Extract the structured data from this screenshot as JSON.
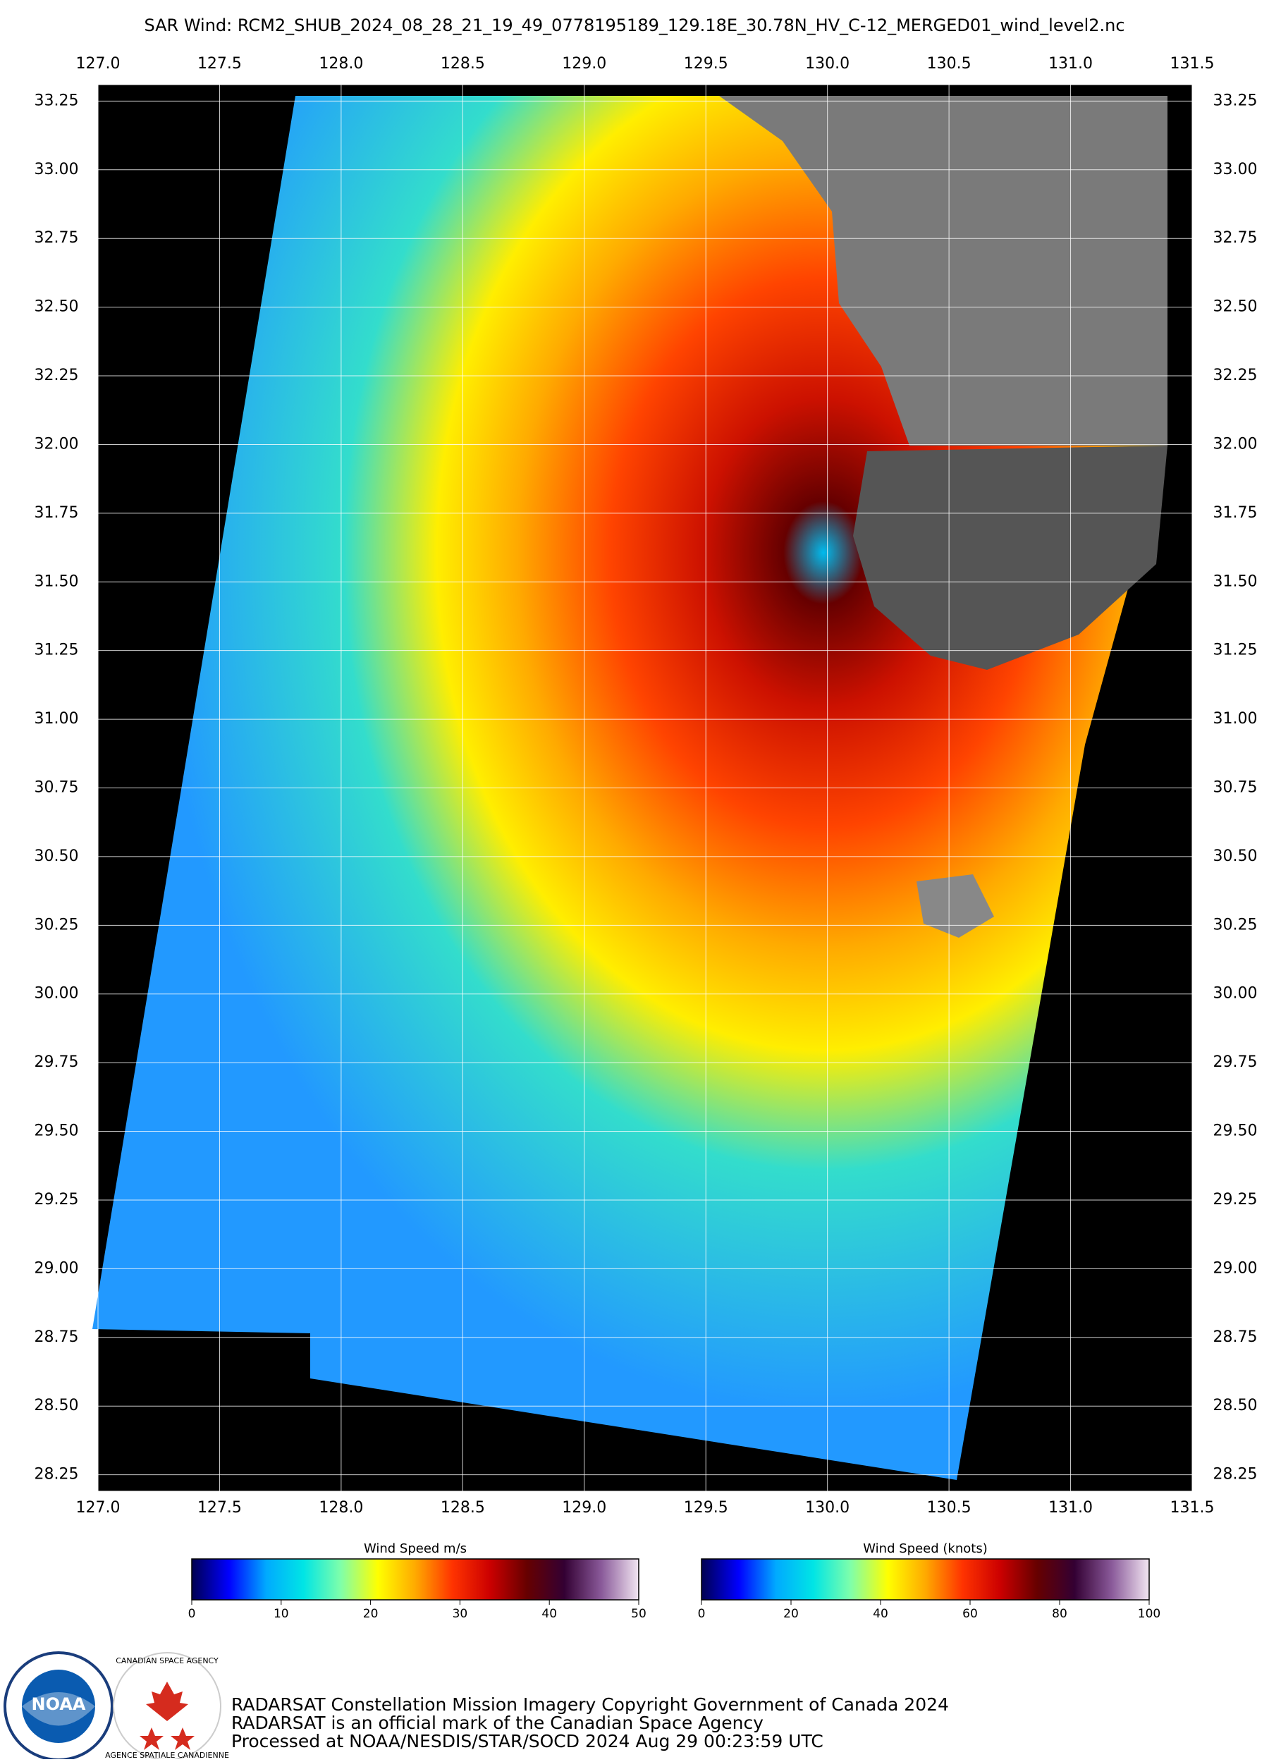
{
  "title": "SAR Wind: RCM2_SHUB_2024_08_28_21_19_49_0778195189_129.18E_30.78N_HV_C-12_MERGED01_wind_level2.nc",
  "map": {
    "xlim": [
      127,
      131.5
    ],
    "ylim": [
      28.19,
      33.31
    ],
    "xticks": [
      {
        "value": 127,
        "label": "127.0"
      },
      {
        "value": 127.5,
        "label": "127.5"
      },
      {
        "value": 128,
        "label": "128.0"
      },
      {
        "value": 128.5,
        "label": "128.5"
      },
      {
        "value": 129,
        "label": "129.0"
      },
      {
        "value": 129.5,
        "label": "129.5"
      },
      {
        "value": 130,
        "label": "130.0"
      },
      {
        "value": 130.5,
        "label": "130.5"
      },
      {
        "value": 131,
        "label": "131.0"
      },
      {
        "value": 131.5,
        "label": "131.5"
      }
    ],
    "yticks": [
      33.25,
      {
        "value": 33,
        "label": "33.00"
      },
      32.75,
      {
        "value": 32.5,
        "label": "32.50"
      },
      32.25,
      {
        "value": 32,
        "label": "32.00"
      },
      31.75,
      {
        "value": 31.5,
        "label": "31.50"
      },
      31.25,
      {
        "value": 31,
        "label": "31.00"
      },
      30.75,
      {
        "value": 30.5,
        "label": "30.50"
      },
      30.25,
      {
        "value": 30,
        "label": "30.00"
      },
      29.75,
      {
        "value": 29.5,
        "label": "29.50"
      },
      29.25,
      {
        "value": 29,
        "label": "29.00"
      },
      28.75,
      {
        "value": 28.5,
        "label": "28.50"
      },
      28.25
    ],
    "grid": true
  },
  "colorbars": [
    {
      "label": "Wind Speed m/s",
      "lim": [
        0,
        50
      ],
      "ticks": [
        0,
        10,
        20,
        30,
        40,
        50
      ]
    },
    {
      "label": "Wind Speed (knots)",
      "lim": [
        0,
        100
      ],
      "ticks": [
        0,
        20,
        40,
        60,
        80,
        100
      ]
    }
  ],
  "colormap": [
    "#000050",
    "#0000ff",
    "#00aaff",
    "#00e5e5",
    "#7fffaa",
    "#ffff00",
    "#ffaa00",
    "#ff3300",
    "#cc0000",
    "#660000",
    "#330033",
    "#8a5a9a",
    "#f2e6f2"
  ],
  "credits": [
    "RADARSAT Constellation Mission Imagery Copyright Government of Canada 2024",
    "RADARSAT is an official mark of the Canadian Space Agency",
    "Processed at NOAA/NESDIS/STAR/SOCD 2024 Aug 29 00:23:59 UTC"
  ],
  "logos": {
    "noaa": "NOAA",
    "csa_en": "CANADIAN SPACE AGENCY",
    "csa_fr": "AGENCE SPATIALE CANADIENNE"
  }
}
